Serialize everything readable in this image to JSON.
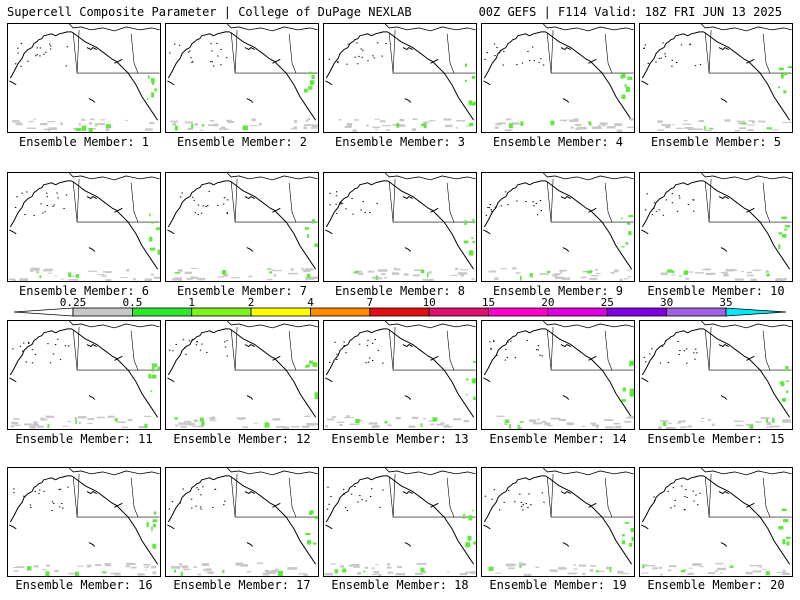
{
  "header": {
    "left": "Supercell Composite Parameter | College of DuPage NEXLAB",
    "right": "00Z GEFS | F114 Valid: 18Z FRI JUN 13 2025"
  },
  "panels": [
    {
      "label": "Ensemble Member: 1"
    },
    {
      "label": "Ensemble Member: 2"
    },
    {
      "label": "Ensemble Member: 3"
    },
    {
      "label": "Ensemble Member: 4"
    },
    {
      "label": "Ensemble Member: 5"
    },
    {
      "label": "Ensemble Member: 6"
    },
    {
      "label": "Ensemble Member: 7"
    },
    {
      "label": "Ensemble Member: 8"
    },
    {
      "label": "Ensemble Member: 9"
    },
    {
      "label": "Ensemble Member: 10"
    },
    {
      "label": "Ensemble Member: 11"
    },
    {
      "label": "Ensemble Member: 12"
    },
    {
      "label": "Ensemble Member: 13"
    },
    {
      "label": "Ensemble Member: 14"
    },
    {
      "label": "Ensemble Member: 15"
    },
    {
      "label": "Ensemble Member: 16"
    },
    {
      "label": "Ensemble Member: 17"
    },
    {
      "label": "Ensemble Member: 18"
    },
    {
      "label": "Ensemble Member: 19"
    },
    {
      "label": "Ensemble Member: 20"
    }
  ],
  "colorbar": {
    "ticks": [
      "0.25",
      "0.5",
      "1",
      "2",
      "4",
      "7",
      "10",
      "15",
      "20",
      "25",
      "30",
      "35"
    ],
    "colors": [
      "#c8c8c8",
      "#2ee82e",
      "#7cf21e",
      "#ffff00",
      "#ff8c00",
      "#e01010",
      "#e0106e",
      "#ff00cc",
      "#e000e0",
      "#8000e0",
      "#a060e0",
      "#00e8f0"
    ],
    "gray_light": "#e8e8e8"
  },
  "map": {
    "coast_color": "#000000",
    "green": "#5ee83c",
    "gray": "#c8c8c8"
  }
}
